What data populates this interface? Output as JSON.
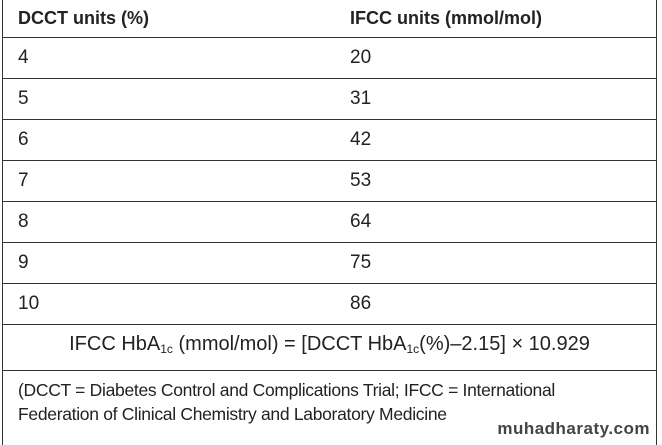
{
  "table": {
    "header": [
      "DCCT units (%)",
      "IFCC units (mmol/mol)"
    ],
    "rows": [
      [
        4,
        20
      ],
      [
        5,
        31
      ],
      [
        6,
        42
      ],
      [
        7,
        53
      ],
      [
        8,
        64
      ],
      [
        9,
        75
      ],
      [
        10,
        86
      ]
    ],
    "formula": [
      "IFCC HbA",
      "1c",
      " (mmol/mol) = [DCCT HbA",
      "1c",
      "(%)–2.15] × 10.929"
    ],
    "footnote": [
      "(DCCT = Diabetes Control and Complications Trial; IFCC = International",
      "Federation of Clinical Chemistry and Laboratory Medicine"
    ]
  },
  "watermark": "muhadharaty.com"
}
